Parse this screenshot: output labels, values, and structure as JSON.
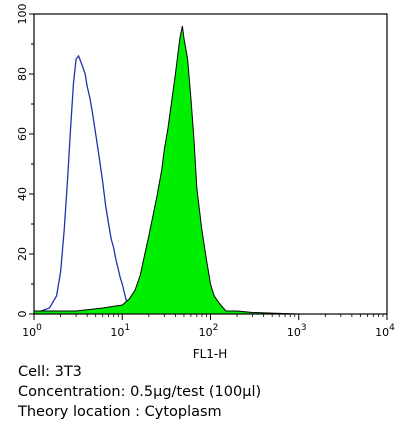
{
  "chart_data": {
    "type": "area",
    "xlabel": "FL1-H",
    "x_scale": "log",
    "xlim": [
      1,
      10000
    ],
    "ylim": [
      0,
      100
    ],
    "x_ticks": [
      {
        "base": "10",
        "exp": "0"
      },
      {
        "base": "10",
        "exp": "1"
      },
      {
        "base": "10",
        "exp": "2"
      },
      {
        "base": "10",
        "exp": "3"
      },
      {
        "base": "10",
        "exp": "4"
      }
    ],
    "y_ticks": [
      "0",
      "20",
      "40",
      "60",
      "80",
      "100"
    ],
    "grid": false,
    "series": [
      {
        "style": "outline",
        "color": "#2233aa",
        "x": [
          1,
          1.2,
          1.5,
          1.8,
          2.0,
          2.2,
          2.4,
          2.6,
          2.8,
          3.0,
          3.2,
          3.4,
          3.6,
          3.8,
          4.0,
          4.3,
          4.6,
          5.0,
          5.5,
          6.0,
          6.5,
          7.0,
          7.5,
          8.0,
          8.5,
          9.0,
          9.5,
          10,
          11,
          12,
          13
        ],
        "y": [
          0,
          1,
          2,
          6,
          14,
          28,
          45,
          62,
          77,
          85,
          86,
          84,
          82,
          80,
          76,
          72,
          67,
          60,
          52,
          44,
          36,
          30,
          25,
          22,
          18,
          15,
          12,
          10,
          5,
          2,
          0
        ]
      },
      {
        "style": "filled",
        "color": "#00ee00",
        "x": [
          1,
          3,
          6,
          10,
          12,
          14,
          16,
          18,
          20,
          22,
          25,
          28,
          30,
          33,
          36,
          40,
          42,
          45,
          48,
          50,
          55,
          60,
          65,
          70,
          80,
          90,
          100,
          110,
          130,
          150,
          200,
          300,
          500,
          1000
        ],
        "y": [
          1,
          1,
          2,
          3,
          5,
          8,
          13,
          20,
          26,
          32,
          40,
          48,
          55,
          62,
          70,
          80,
          85,
          92,
          96,
          92,
          85,
          72,
          58,
          42,
          28,
          18,
          10,
          6,
          3,
          1,
          1,
          0.5,
          0.3,
          0
        ]
      }
    ]
  },
  "caption": {
    "cell": "Cell: 3T3",
    "concentration": "Concentration: 0.5μg/test (100μl)",
    "location": "Theory location : Cytoplasm"
  }
}
